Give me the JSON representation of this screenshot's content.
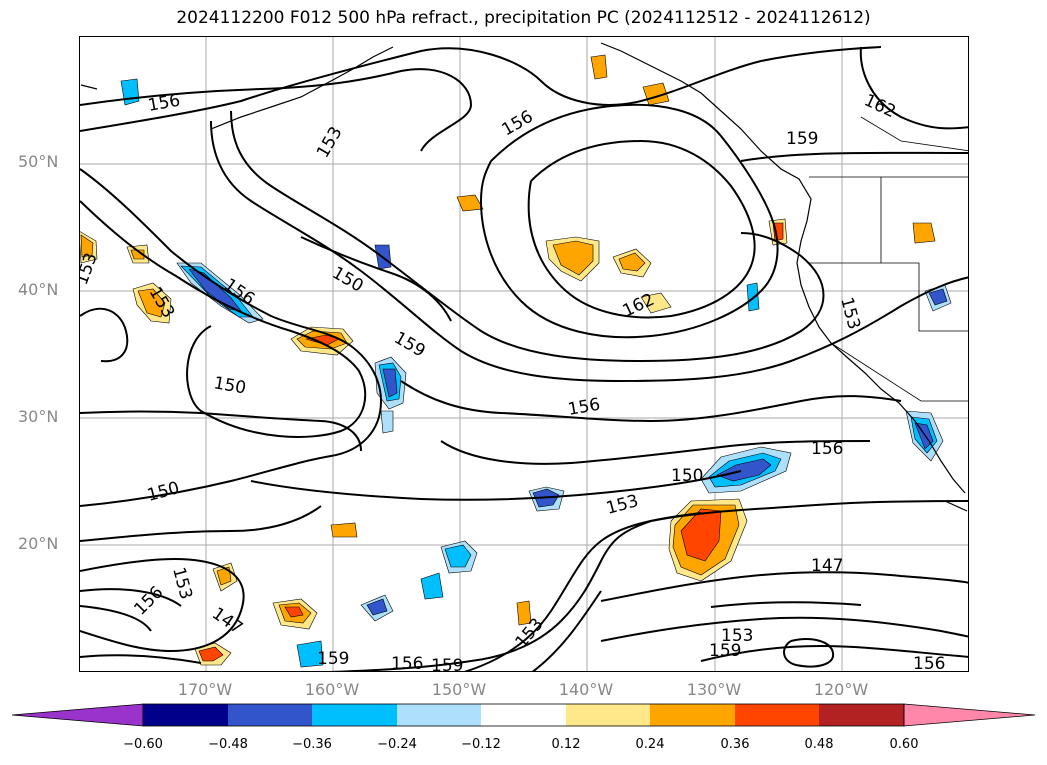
{
  "title": "2024112200 F012 500 hPa refract., precipitation PC (2024112512 - 2024112612)",
  "lat_labels": [
    "50°N",
    "40°N",
    "30°N",
    "20°N"
  ],
  "lon_labels": [
    "170°W",
    "160°W",
    "150°W",
    "140°W",
    "130°W",
    "120°W"
  ],
  "contour_labels": [
    "156",
    "153",
    "156",
    "159",
    "162",
    "153",
    "153",
    "156",
    "150",
    "153",
    "150",
    "159",
    "156",
    "162",
    "150",
    "150",
    "156",
    "153",
    "147",
    "156",
    "153",
    "147",
    "159",
    "156",
    "159",
    "153",
    "159",
    "153",
    "156"
  ],
  "colorbar": {
    "ticks": [
      "−0.60",
      "−0.48",
      "−0.36",
      "−0.24",
      "−0.12",
      "0.12",
      "0.24",
      "0.36",
      "0.48",
      "0.60"
    ],
    "colors": [
      "#9933cc",
      "#00008b",
      "#3355cc",
      "#00bfff",
      "#aee0fb",
      "#ffffff",
      "#ffe88a",
      "#ffa500",
      "#ff4500",
      "#b22222",
      "#ff88aa"
    ]
  }
}
